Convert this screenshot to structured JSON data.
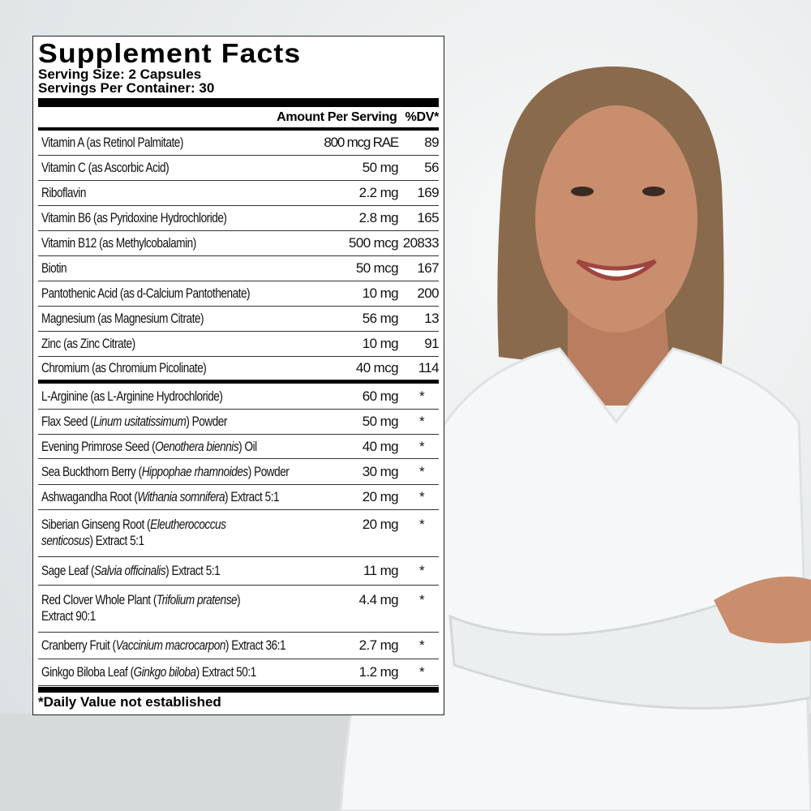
{
  "label": {
    "title": "Supplement Facts",
    "serving_size": "Serving Size: 2 Capsules",
    "servings_per_container": "Servings Per Container: 30",
    "col_amount": "Amount Per Serving",
    "col_dv": "%DV*",
    "vitamins": [
      {
        "pre": "Vitamin A (as Retinol Palmitate)",
        "amount": "800 mcg RAE",
        "dv": "89"
      },
      {
        "pre": "Vitamin C (as Ascorbic Acid)",
        "amount": "50 mg",
        "dv": "56"
      },
      {
        "pre": "Riboflavin",
        "amount": "2.2 mg",
        "dv": "169"
      },
      {
        "pre": "Vitamin B6 (as Pyridoxine Hydrochloride)",
        "amount": "2.8 mg",
        "dv": "165"
      },
      {
        "pre": "Vitamin B12 (as Methylcobalamin)",
        "amount": "500 mcg",
        "dv": "20833"
      },
      {
        "pre": "Biotin",
        "amount": "50 mcg",
        "dv": "167"
      },
      {
        "pre": "Pantothenic Acid (as d-Calcium Pantothenate)",
        "amount": "10 mg",
        "dv": "200"
      },
      {
        "pre": "Magnesium (as Magnesium Citrate)",
        "amount": "56 mg",
        "dv": "13"
      },
      {
        "pre": "Zinc (as Zinc Citrate)",
        "amount": "10 mg",
        "dv": "91"
      },
      {
        "pre": "Chromium (as Chromium Picolinate)",
        "amount": "40 mcg",
        "dv": "114"
      }
    ],
    "botanicals": [
      {
        "pre": "L-Arginine (as L-Arginine Hydrochloride)",
        "amount": "60 mg",
        "dv": "*"
      },
      {
        "pre": "Flax Seed (",
        "it": "Linum usitatissimum",
        "post": ") Powder",
        "amount": "50 mg",
        "dv": "*"
      },
      {
        "pre": "Evening Primrose Seed (",
        "it": "Oenothera biennis",
        "post": ") Oil",
        "amount": "40 mg",
        "dv": "*"
      },
      {
        "pre": "Sea Buckthorn Berry (",
        "it": "Hippophae rhamnoides",
        "post": ") Powder",
        "amount": "30 mg",
        "dv": "*"
      },
      {
        "pre": "Ashwagandha Root (",
        "it": "Withania somnifera",
        "post": ") Extract 5:1",
        "amount": "20 mg",
        "dv": "*"
      },
      {
        "pre": "Siberian Ginseng Root (",
        "it": "Eleutherococcus senticosus",
        "post": ") Extract 5:1",
        "amount": "20 mg",
        "dv": "*"
      },
      {
        "pre": "Sage Leaf (",
        "it": "Salvia officinalis",
        "post": ") Extract 5:1",
        "amount": "11 mg",
        "dv": "*"
      },
      {
        "pre": "Red Clover Whole Plant (",
        "it": "Trifolium pratense",
        "post": ") Extract 90:1",
        "amount": "4.4 mg",
        "dv": "*"
      },
      {
        "pre": "Cranberry Fruit (",
        "it": "Vaccinium macrocarpon",
        "post": ") Extract 36:1",
        "amount": "2.7 mg",
        "dv": "*"
      },
      {
        "pre": "Ginkgo Biloba Leaf (",
        "it": "Ginkgo biloba",
        "post": ") Extract 50:1",
        "amount": "1.2 mg",
        "dv": "*"
      }
    ],
    "footnote": "*Daily Value not established"
  },
  "colors": {
    "background": "#eef0f1",
    "coat": "#f6f7f8",
    "skin": "#c98e6e",
    "hair": "#8a6a4c"
  }
}
